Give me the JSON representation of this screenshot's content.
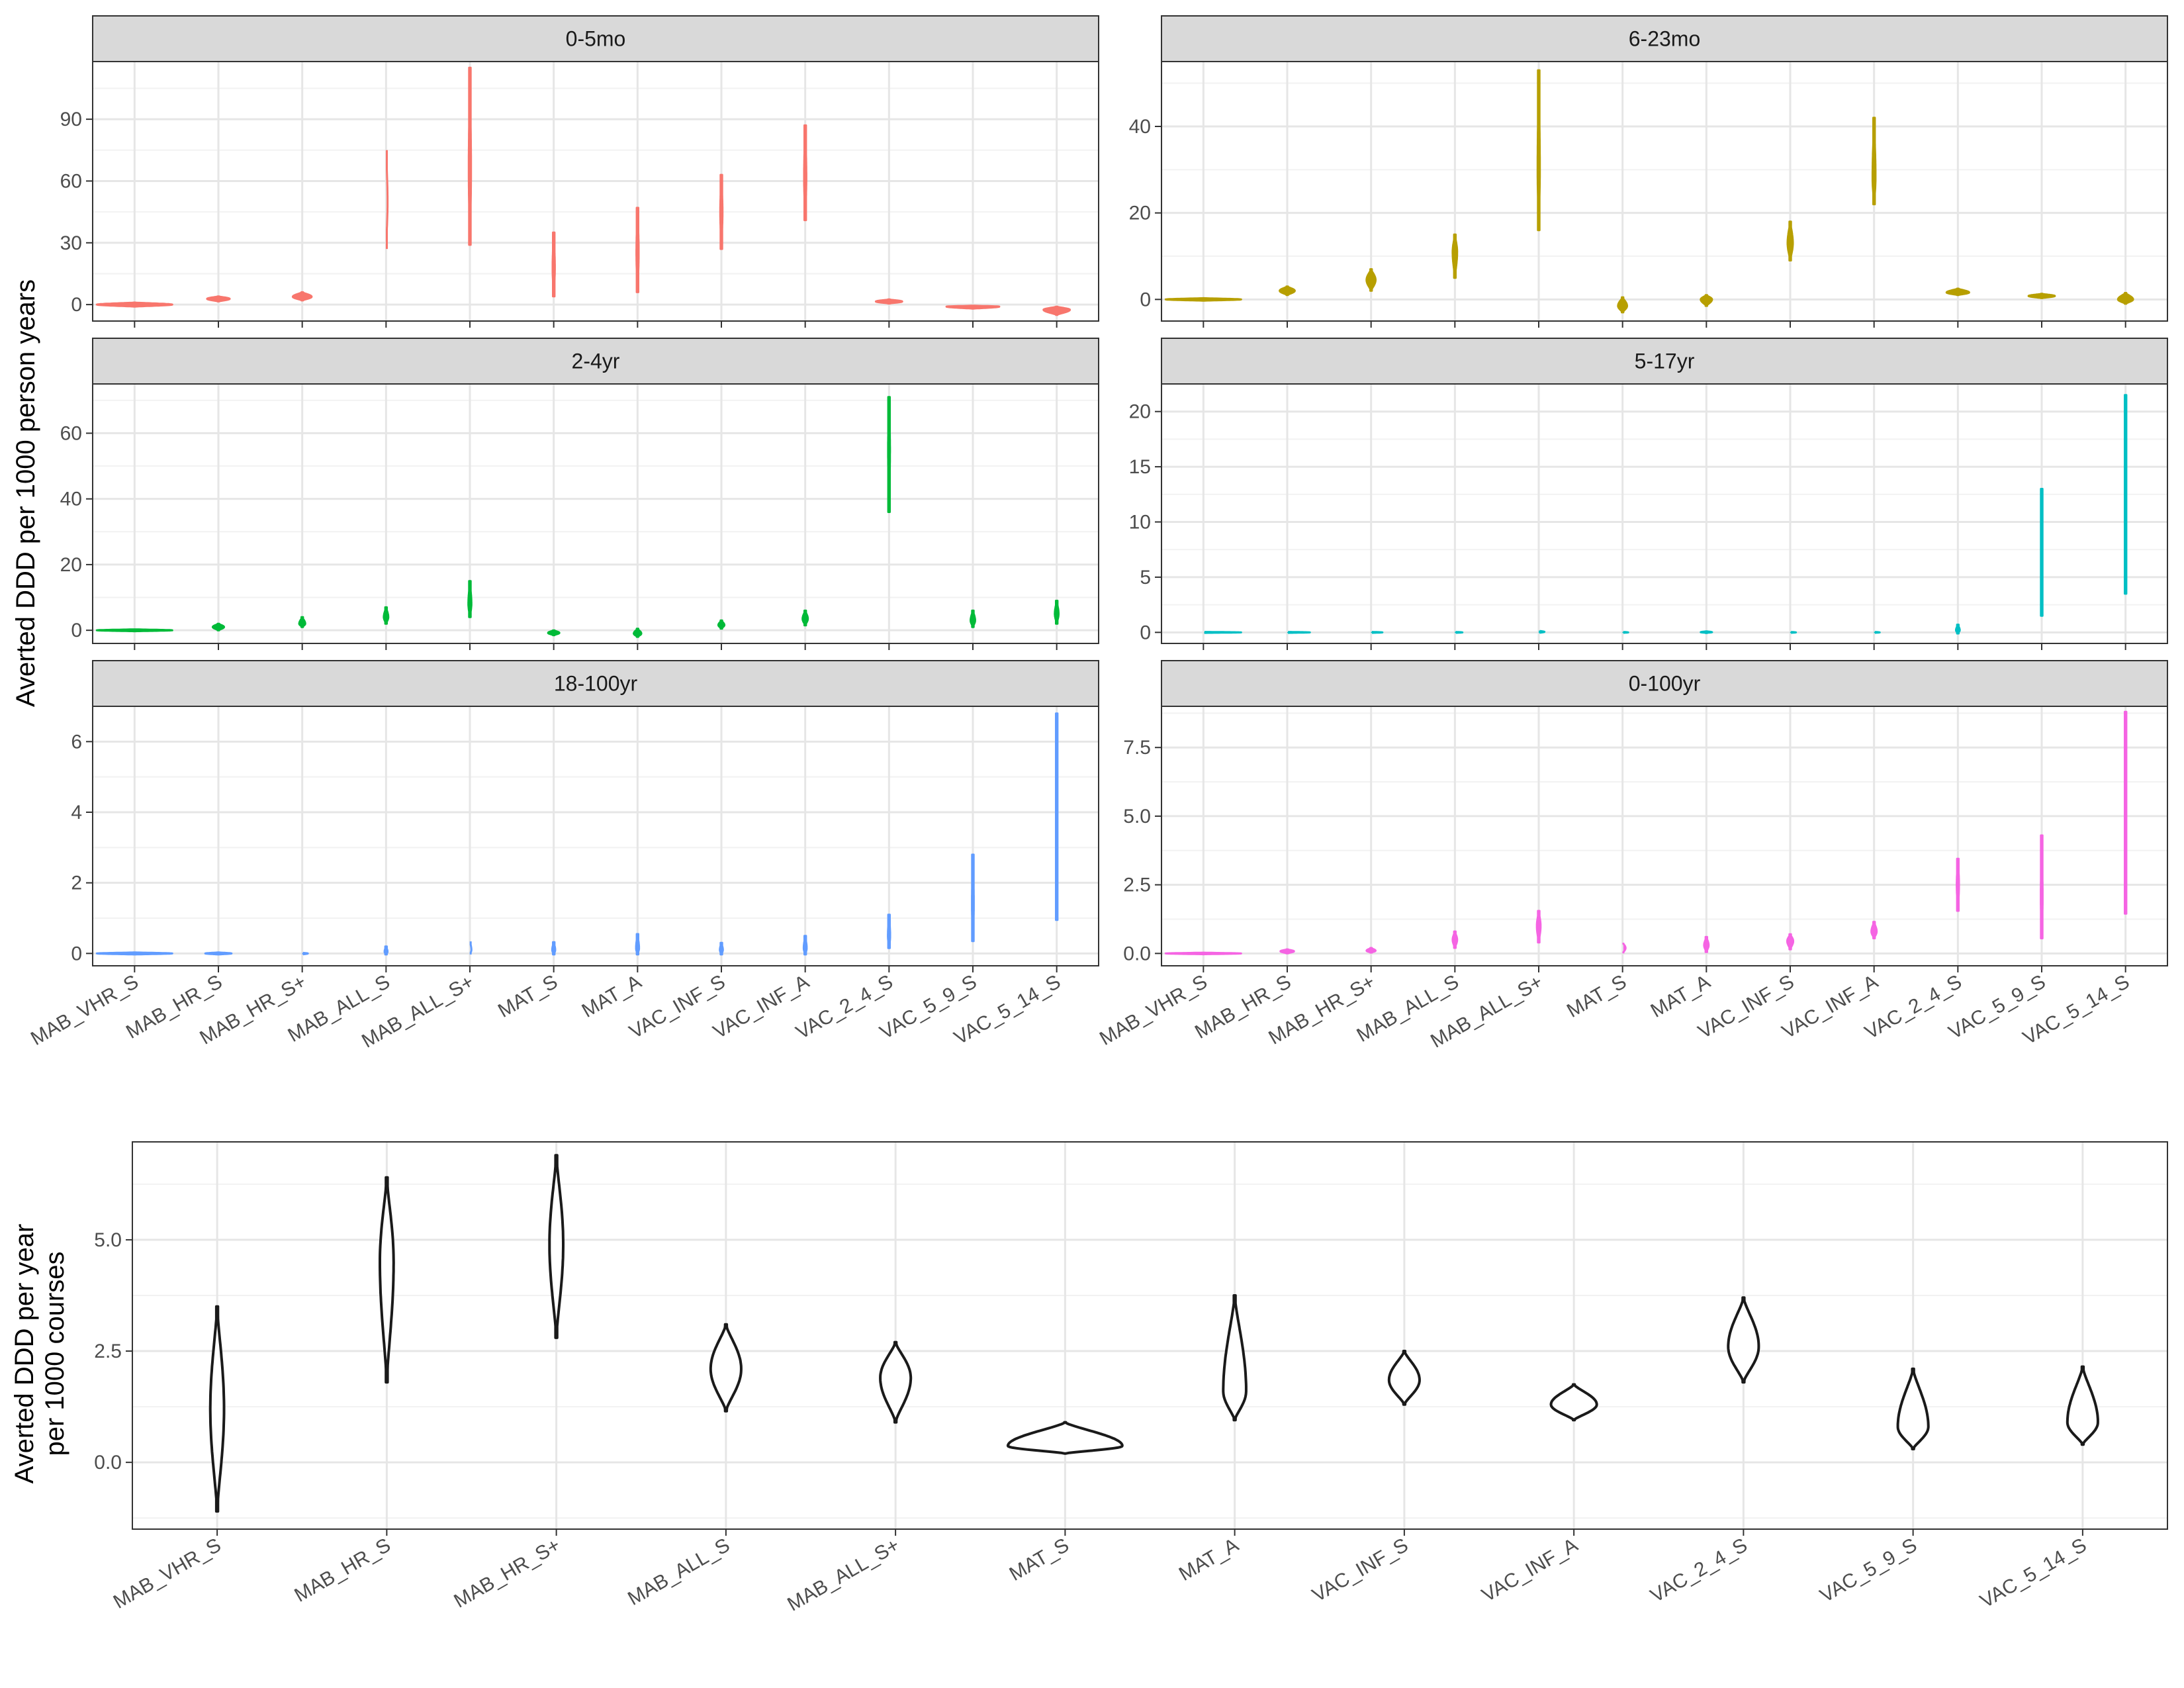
{
  "figure": {
    "top_ylabel": "Averted DDD per 1000 person years",
    "bottom_ylabel_line1": "Averted DDD per year",
    "bottom_ylabel_line2": "per 1000 courses"
  },
  "colors": {
    "panel_0_5mo": "#F8766D",
    "panel_6_23mo": "#B79F00",
    "panel_2_4yr": "#00BA38",
    "panel_5_17yr": "#00BFC4",
    "panel_18_100yr": "#619CFF",
    "panel_0_100yr": "#F564E3",
    "bottom": "#1a1a1a",
    "strip_fill": "#d9d9d9",
    "grid_major": "#e6e6e6",
    "grid_minor": "#f2f2f2",
    "panel_border": "#333333"
  },
  "chart_data": [
    {
      "type": "violin",
      "facet": "0-5mo",
      "categories": [
        "MAB_VHR_S",
        "MAB_HR_S",
        "MAB_HR_S+",
        "MAB_ALL_S",
        "MAB_ALL_S+",
        "MAT_S",
        "MAT_A",
        "VAC_INF_S",
        "VAC_INF_A",
        "VAC_2_4_S",
        "VAC_5_9_S",
        "VAC_5_14_S"
      ],
      "ylim": [
        -8,
        118
      ],
      "yticks": [
        0,
        30,
        60,
        90
      ],
      "ytick_labels": [
        "0",
        "30",
        "60",
        "90"
      ],
      "ranges": [
        [
          -1,
          1
        ],
        [
          1.5,
          4
        ],
        [
          2,
          6
        ],
        [
          27,
          76
        ],
        [
          29,
          115
        ],
        [
          4,
          35
        ],
        [
          6,
          47
        ],
        [
          27,
          63
        ],
        [
          41,
          87
        ],
        [
          0.5,
          2.5
        ],
        [
          -2,
          -0.5
        ],
        [
          -5,
          -1
        ]
      ],
      "peaks": [
        0,
        2.8,
        3.8,
        50,
        65,
        18,
        25,
        45,
        62,
        1.5,
        -1,
        -2.5
      ],
      "widths": [
        1,
        0.3,
        0.25,
        0.04,
        0.03,
        0.03,
        0.03,
        0.03,
        0.03,
        0.35,
        0.7,
        0.35
      ]
    },
    {
      "type": "violin",
      "facet": "6-23mo",
      "categories": [
        "MAB_VHR_S",
        "MAB_HR_S",
        "MAB_HR_S+",
        "MAB_ALL_S",
        "MAB_ALL_S+",
        "MAT_S",
        "MAT_A",
        "VAC_INF_S",
        "VAC_INF_A",
        "VAC_2_4_S",
        "VAC_5_9_S",
        "VAC_5_14_S"
      ],
      "ylim": [
        -5,
        55
      ],
      "yticks": [
        0,
        20,
        40
      ],
      "ytick_labels": [
        "0",
        "20",
        "40"
      ],
      "ranges": [
        [
          -0.3,
          0.3
        ],
        [
          1,
          3
        ],
        [
          2,
          7
        ],
        [
          5,
          15
        ],
        [
          16,
          53
        ],
        [
          -3,
          0.5
        ],
        [
          -1.5,
          1
        ],
        [
          9,
          18
        ],
        [
          22,
          42
        ],
        [
          1,
          2.5
        ],
        [
          0.3,
          1.3
        ],
        [
          -1,
          1.5
        ]
      ],
      "peaks": [
        0,
        2,
        4.5,
        11,
        30,
        -1.5,
        0,
        13,
        28,
        1.6,
        0.8,
        0
      ],
      "widths": [
        1,
        0.2,
        0.12,
        0.06,
        0.03,
        0.12,
        0.15,
        0.07,
        0.04,
        0.3,
        0.35,
        0.2
      ]
    },
    {
      "type": "violin",
      "facet": "2-4yr",
      "categories": [
        "MAB_VHR_S",
        "MAB_HR_S",
        "MAB_HR_S+",
        "MAB_ALL_S",
        "MAB_ALL_S+",
        "MAT_S",
        "MAT_A",
        "VAC_INF_S",
        "VAC_INF_A",
        "VAC_2_4_S",
        "VAC_5_9_S",
        "VAC_5_14_S"
      ],
      "ylim": [
        -4,
        75
      ],
      "yticks": [
        0,
        20,
        40,
        60
      ],
      "ytick_labels": [
        "0",
        "20",
        "40",
        "60"
      ],
      "ranges": [
        [
          -0.3,
          0.3
        ],
        [
          0,
          2
        ],
        [
          1,
          4
        ],
        [
          2,
          7
        ],
        [
          4,
          15
        ],
        [
          -1.5,
          0
        ],
        [
          -2,
          0.5
        ],
        [
          0.5,
          3
        ],
        [
          1.5,
          6
        ],
        [
          36,
          71
        ],
        [
          1,
          6
        ],
        [
          2,
          9
        ]
      ],
      "peaks": [
        0,
        1,
        2,
        4,
        8,
        -0.8,
        -1,
        1.6,
        3.5,
        55,
        3,
        5
      ],
      "widths": [
        1,
        0.15,
        0.08,
        0.06,
        0.04,
        0.15,
        0.1,
        0.08,
        0.07,
        0.025,
        0.06,
        0.05
      ]
    },
    {
      "type": "violin",
      "facet": "5-17yr",
      "categories": [
        "MAB_VHR_S",
        "MAB_HR_S",
        "MAB_HR_S+",
        "MAB_ALL_S",
        "MAB_ALL_S+",
        "MAT_S",
        "MAT_A",
        "VAC_INF_S",
        "VAC_INF_A",
        "VAC_2_4_S",
        "VAC_5_9_S",
        "VAC_5_14_S"
      ],
      "ylim": [
        -1,
        22.5
      ],
      "yticks": [
        0,
        5,
        10,
        15,
        20
      ],
      "ytick_labels": [
        "0",
        "5",
        "10",
        "15",
        "20"
      ],
      "ranges": [
        [
          -0.05,
          0.05
        ],
        [
          -0.05,
          0.05
        ],
        [
          -0.05,
          0.05
        ],
        [
          -0.05,
          0.05
        ],
        [
          -0.05,
          0.15
        ],
        [
          -0.05,
          0.05
        ],
        [
          -0.05,
          0.1
        ],
        [
          -0.05,
          0.05
        ],
        [
          -0.05,
          0.05
        ],
        [
          -0.1,
          0.7
        ],
        [
          1.5,
          13
        ],
        [
          3.5,
          21.5
        ]
      ],
      "peaks": [
        0,
        0,
        0,
        0,
        0.05,
        0,
        0.02,
        0,
        0,
        0.2,
        6,
        12
      ],
      "widths": [
        1,
        0.6,
        0.3,
        0.2,
        0.15,
        0.15,
        0.15,
        0.15,
        0.15,
        0.05,
        0.02,
        0.02
      ]
    },
    {
      "type": "violin",
      "facet": "18-100yr",
      "categories": [
        "MAB_VHR_S",
        "MAB_HR_S",
        "MAB_HR_S+",
        "MAB_ALL_S",
        "MAB_ALL_S+",
        "MAT_S",
        "MAT_A",
        "VAC_INF_S",
        "VAC_INF_A",
        "VAC_2_4_S",
        "VAC_5_9_S",
        "VAC_5_14_S"
      ],
      "ylim": [
        -0.35,
        7
      ],
      "yticks": [
        0,
        2,
        4,
        6
      ],
      "ytick_labels": [
        "0",
        "2",
        "4",
        "6"
      ],
      "ranges": [
        [
          -0.03,
          0.03
        ],
        [
          -0.03,
          0.03
        ],
        [
          -0.03,
          0.02
        ],
        [
          -0.03,
          0.2
        ],
        [
          -0.03,
          0.35
        ],
        [
          -0.03,
          0.32
        ],
        [
          -0.03,
          0.55
        ],
        [
          -0.03,
          0.3
        ],
        [
          -0.03,
          0.5
        ],
        [
          0.15,
          1.1
        ],
        [
          0.35,
          2.8
        ],
        [
          0.95,
          6.8
        ]
      ],
      "peaks": [
        0,
        0,
        0,
        0.05,
        0.1,
        0.1,
        0.15,
        0.1,
        0.15,
        0.5,
        1.4,
        3.5
      ],
      "widths": [
        1,
        0.35,
        0.15,
        0.04,
        0.04,
        0.04,
        0.04,
        0.04,
        0.04,
        0.03,
        0.025,
        0.02
      ]
    },
    {
      "type": "violin",
      "facet": "0-100yr",
      "categories": [
        "MAB_VHR_S",
        "MAB_HR_S",
        "MAB_HR_S+",
        "MAB_ALL_S",
        "MAB_ALL_S+",
        "MAT_S",
        "MAT_A",
        "VAC_INF_S",
        "VAC_INF_A",
        "VAC_2_4_S",
        "VAC_5_9_S",
        "VAC_5_14_S"
      ],
      "ylim": [
        -0.45,
        9
      ],
      "yticks": [
        0,
        2.5,
        5,
        7.5
      ],
      "ytick_labels": [
        "0.0",
        "2.5",
        "5.0",
        "7.5"
      ],
      "ranges": [
        [
          -0.03,
          0.03
        ],
        [
          0,
          0.15
        ],
        [
          0.03,
          0.2
        ],
        [
          0.2,
          0.8
        ],
        [
          0.4,
          1.55
        ],
        [
          0,
          0.4
        ],
        [
          0.05,
          0.6
        ],
        [
          0.15,
          0.7
        ],
        [
          0.55,
          1.15
        ],
        [
          1.55,
          3.45
        ],
        [
          0.55,
          4.3
        ],
        [
          1.45,
          8.8
        ]
      ],
      "peaks": [
        0,
        0.08,
        0.1,
        0.5,
        1,
        0.2,
        0.3,
        0.45,
        0.8,
        2.5,
        2,
        4.5
      ],
      "widths": [
        1,
        0.18,
        0.12,
        0.06,
        0.05,
        0.08,
        0.06,
        0.08,
        0.07,
        0.03,
        0.025,
        0.02
      ]
    },
    {
      "type": "violin",
      "facet": "",
      "categories": [
        "MAB_VHR_S",
        "MAB_HR_S",
        "MAB_HR_S+",
        "MAB_ALL_S",
        "MAB_ALL_S+",
        "MAT_S",
        "MAT_A",
        "VAC_INF_S",
        "VAC_INF_A",
        "VAC_2_4_S",
        "VAC_5_9_S",
        "VAC_5_14_S"
      ],
      "ylim": [
        -1.5,
        7.2
      ],
      "yticks": [
        0,
        2.5,
        5
      ],
      "ytick_labels": [
        "0.0",
        "2.5",
        "5.0"
      ],
      "ranges": [
        [
          -1.1,
          3.5
        ],
        [
          1.8,
          6.4
        ],
        [
          2.8,
          6.9
        ],
        [
          1.15,
          3.1
        ],
        [
          0.9,
          2.7
        ],
        [
          0.2,
          0.9
        ],
        [
          0.95,
          3.75
        ],
        [
          1.3,
          2.5
        ],
        [
          0.95,
          1.75
        ],
        [
          1.8,
          3.7
        ],
        [
          0.3,
          2.1
        ],
        [
          0.4,
          2.15
        ]
      ],
      "peaks": [
        1.2,
        4.5,
        4.9,
        2.1,
        1.9,
        0.37,
        1.6,
        1.85,
        1.3,
        2.6,
        0.8,
        0.9
      ],
      "widths": [
        0.09,
        0.09,
        0.09,
        0.2,
        0.2,
        0.75,
        0.15,
        0.2,
        0.3,
        0.2,
        0.2,
        0.2
      ]
    }
  ]
}
